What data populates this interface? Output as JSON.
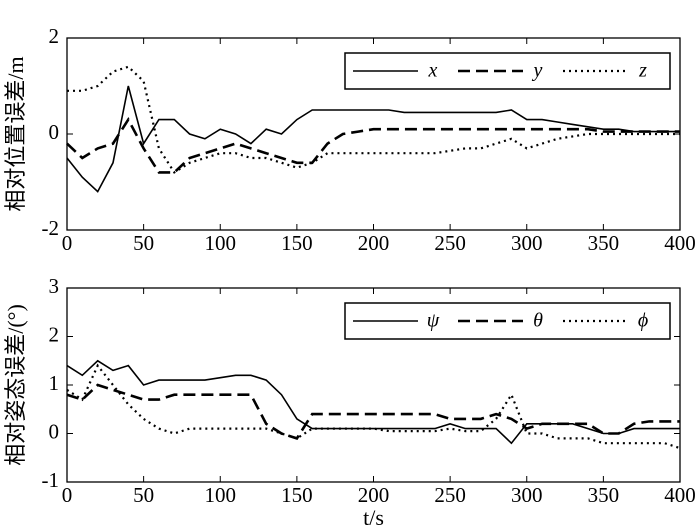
{
  "chart_data": [
    {
      "type": "line",
      "ylabel": "相对位置误差/m",
      "x": [
        0,
        10,
        20,
        30,
        40,
        50,
        60,
        70,
        80,
        90,
        100,
        110,
        120,
        130,
        140,
        150,
        160,
        170,
        180,
        190,
        200,
        210,
        220,
        230,
        240,
        250,
        260,
        270,
        280,
        290,
        300,
        310,
        320,
        330,
        340,
        350,
        360,
        370,
        380,
        390,
        400
      ],
      "xlim": [
        0,
        400
      ],
      "xticks": [
        0,
        50,
        100,
        150,
        200,
        250,
        300,
        350,
        400
      ],
      "ylim": [
        -2,
        2
      ],
      "yticks": [
        -2,
        0,
        2
      ],
      "legend": "upper right",
      "series": [
        {
          "name": "x",
          "color": "#000000",
          "linestyle": "solid",
          "values": [
            -0.5,
            -0.9,
            -1.2,
            -0.6,
            1.0,
            -0.2,
            0.3,
            0.3,
            0.0,
            -0.1,
            0.1,
            0.0,
            -0.2,
            0.1,
            0.0,
            0.3,
            0.5,
            0.5,
            0.5,
            0.5,
            0.5,
            0.5,
            0.45,
            0.45,
            0.45,
            0.45,
            0.45,
            0.45,
            0.45,
            0.5,
            0.3,
            0.3,
            0.25,
            0.2,
            0.15,
            0.1,
            0.1,
            0.05,
            0.05,
            0.05,
            0.05
          ]
        },
        {
          "name": "y",
          "color": "#000000",
          "linestyle": "dashed",
          "values": [
            -0.2,
            -0.5,
            -0.3,
            -0.2,
            0.3,
            -0.3,
            -0.8,
            -0.8,
            -0.5,
            -0.4,
            -0.3,
            -0.2,
            -0.3,
            -0.4,
            -0.5,
            -0.6,
            -0.6,
            -0.2,
            0.0,
            0.05,
            0.1,
            0.1,
            0.1,
            0.1,
            0.1,
            0.1,
            0.1,
            0.1,
            0.1,
            0.1,
            0.1,
            0.1,
            0.1,
            0.1,
            0.1,
            0.05,
            0.05,
            0.05,
            0.05,
            0.05,
            0.05
          ]
        },
        {
          "name": "z",
          "color": "#000000",
          "linestyle": "dotted",
          "values": [
            0.9,
            0.9,
            1.0,
            1.3,
            1.4,
            1.1,
            -0.3,
            -0.8,
            -0.6,
            -0.5,
            -0.4,
            -0.4,
            -0.5,
            -0.5,
            -0.6,
            -0.7,
            -0.6,
            -0.4,
            -0.4,
            -0.4,
            -0.4,
            -0.4,
            -0.4,
            -0.4,
            -0.4,
            -0.35,
            -0.3,
            -0.3,
            -0.2,
            -0.1,
            -0.3,
            -0.2,
            -0.1,
            -0.05,
            0.0,
            0.0,
            0.0,
            0.0,
            0.0,
            0.0,
            0.0
          ]
        }
      ]
    },
    {
      "type": "line",
      "ylabel": "相对姿态误差/(°)",
      "xlabel": "t/s",
      "x": [
        0,
        10,
        20,
        30,
        40,
        50,
        60,
        70,
        80,
        90,
        100,
        110,
        120,
        130,
        140,
        150,
        160,
        170,
        180,
        190,
        200,
        210,
        220,
        230,
        240,
        250,
        260,
        270,
        280,
        290,
        300,
        310,
        320,
        330,
        340,
        350,
        360,
        370,
        380,
        390,
        400
      ],
      "xlim": [
        0,
        400
      ],
      "xticks": [
        0,
        50,
        100,
        150,
        200,
        250,
        300,
        350,
        400
      ],
      "ylim": [
        -1,
        3
      ],
      "yticks": [
        -1,
        0,
        1,
        2,
        3
      ],
      "legend": "upper right",
      "series": [
        {
          "name": "ψ",
          "color": "#000000",
          "linestyle": "solid",
          "values": [
            1.4,
            1.2,
            1.5,
            1.3,
            1.4,
            1.0,
            1.1,
            1.1,
            1.1,
            1.1,
            1.15,
            1.2,
            1.2,
            1.1,
            0.8,
            0.3,
            0.1,
            0.1,
            0.1,
            0.1,
            0.1,
            0.1,
            0.1,
            0.1,
            0.1,
            0.2,
            0.1,
            0.1,
            0.1,
            -0.2,
            0.2,
            0.2,
            0.2,
            0.2,
            0.1,
            0.0,
            0.0,
            0.1,
            0.1,
            0.1,
            0.1
          ]
        },
        {
          "name": "θ",
          "color": "#000000",
          "linestyle": "dashed",
          "values": [
            0.8,
            0.7,
            1.0,
            0.9,
            0.8,
            0.7,
            0.7,
            0.8,
            0.8,
            0.8,
            0.8,
            0.8,
            0.8,
            0.2,
            0.0,
            -0.1,
            0.4,
            0.4,
            0.4,
            0.4,
            0.4,
            0.4,
            0.4,
            0.4,
            0.4,
            0.3,
            0.3,
            0.3,
            0.4,
            0.3,
            0.1,
            0.2,
            0.2,
            0.2,
            0.2,
            0.0,
            0.0,
            0.2,
            0.25,
            0.25,
            0.25
          ]
        },
        {
          "name": "ϕ",
          "color": "#000000",
          "linestyle": "dotted",
          "values": [
            0.9,
            0.7,
            1.4,
            1.0,
            0.6,
            0.3,
            0.1,
            0.0,
            0.1,
            0.1,
            0.1,
            0.1,
            0.1,
            0.1,
            0.0,
            -0.1,
            0.1,
            0.1,
            0.1,
            0.1,
            0.1,
            0.05,
            0.05,
            0.05,
            0.05,
            0.1,
            0.05,
            0.05,
            0.3,
            0.8,
            0.0,
            0.0,
            -0.1,
            -0.1,
            -0.1,
            -0.2,
            -0.2,
            -0.2,
            -0.2,
            -0.2,
            -0.3
          ]
        }
      ]
    }
  ]
}
